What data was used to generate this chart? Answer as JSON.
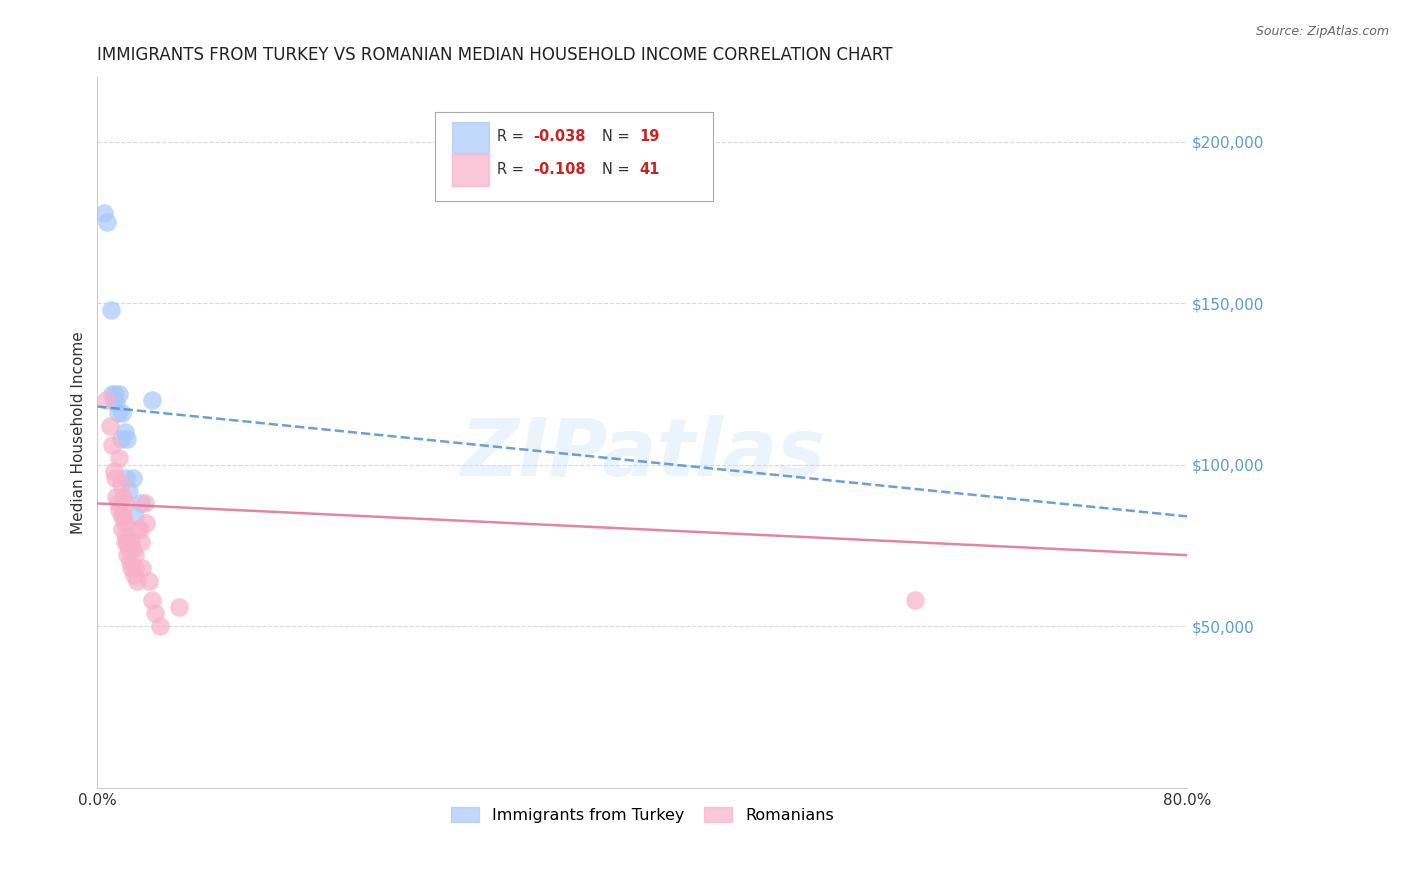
{
  "title": "IMMIGRANTS FROM TURKEY VS ROMANIAN MEDIAN HOUSEHOLD INCOME CORRELATION CHART",
  "source": "Source: ZipAtlas.com",
  "ylabel": "Median Household Income",
  "right_yticks": [
    0,
    50000,
    100000,
    150000,
    200000
  ],
  "right_yticklabels": [
    "",
    "$50,000",
    "$100,000",
    "$150,000",
    "$200,000"
  ],
  "ylim": [
    0,
    220000
  ],
  "xlim": [
    0.0,
    0.8
  ],
  "turkey_color": "#a8c8f8",
  "romanian_color": "#f8b0c8",
  "trend_blue_color": "#5090d0",
  "trend_pink_color": "#e07090",
  "right_axis_color": "#5b9bd5",
  "watermark": "ZIPatlas",
  "turkey_x": [
    0.005,
    0.007,
    0.01,
    0.011,
    0.012,
    0.013,
    0.014,
    0.015,
    0.016,
    0.017,
    0.018,
    0.02,
    0.021,
    0.022,
    0.023,
    0.026,
    0.028,
    0.032,
    0.04
  ],
  "turkey_y": [
    178000,
    175000,
    148000,
    122000,
    120000,
    122000,
    119000,
    116000,
    122000,
    108000,
    116000,
    110000,
    96000,
    108000,
    92000,
    96000,
    84000,
    88000,
    120000
  ],
  "romanian_x": [
    0.006,
    0.009,
    0.011,
    0.012,
    0.013,
    0.014,
    0.015,
    0.016,
    0.016,
    0.017,
    0.018,
    0.018,
    0.019,
    0.019,
    0.02,
    0.02,
    0.021,
    0.021,
    0.022,
    0.022,
    0.023,
    0.024,
    0.025,
    0.025,
    0.026,
    0.027,
    0.028,
    0.028,
    0.029,
    0.03,
    0.031,
    0.032,
    0.033,
    0.035,
    0.036,
    0.038,
    0.04,
    0.042,
    0.046,
    0.06,
    0.6
  ],
  "romanian_y": [
    120000,
    112000,
    106000,
    98000,
    96000,
    90000,
    88000,
    86000,
    102000,
    94000,
    84000,
    80000,
    90000,
    84000,
    82000,
    76000,
    88000,
    78000,
    76000,
    72000,
    74000,
    70000,
    76000,
    68000,
    74000,
    66000,
    72000,
    68000,
    64000,
    80000,
    80000,
    76000,
    68000,
    88000,
    82000,
    64000,
    58000,
    54000,
    50000,
    56000,
    58000
  ],
  "background_color": "#ffffff",
  "grid_color": "#d0d0d0",
  "trend_blue_x0": 0.0,
  "trend_blue_y0": 118000,
  "trend_blue_x1": 0.8,
  "trend_blue_y1": 84000,
  "trend_pink_x0": 0.0,
  "trend_pink_y0": 88000,
  "trend_pink_x1": 0.8,
  "trend_pink_y1": 72000
}
